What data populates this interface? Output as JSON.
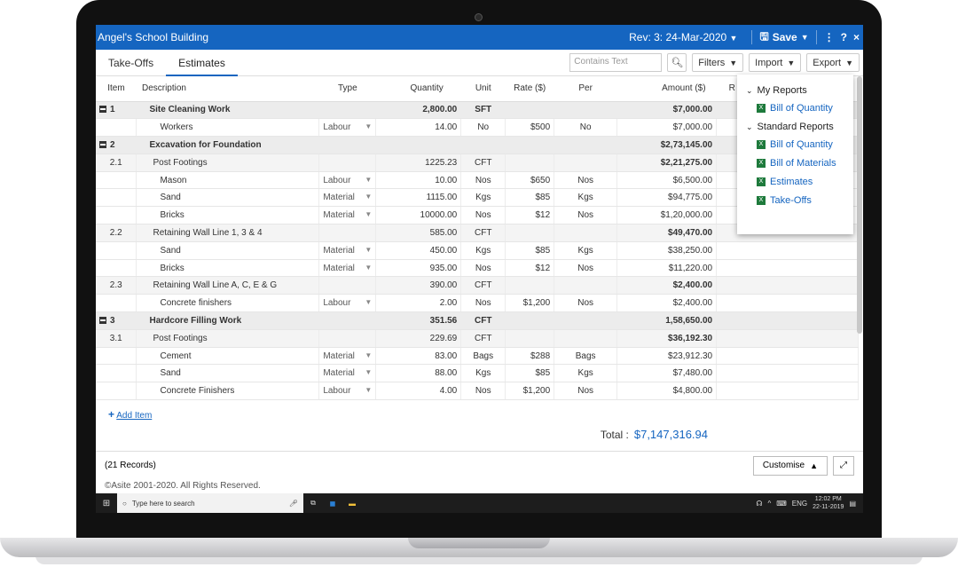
{
  "app": {
    "title": "Angel's School Building",
    "revision": "Rev: 3: 24-Mar-2020",
    "save_label": "Save",
    "more_icon": "⋮",
    "help_icon": "?",
    "close_icon": "×"
  },
  "tabs": [
    {
      "label": "Take-Offs"
    },
    {
      "label": "Estimates"
    }
  ],
  "toolbar": {
    "search_placeholder": "Contains Text",
    "filters_label": "Filters",
    "import_label": "Import",
    "export_label": "Export"
  },
  "columns": {
    "item": "Item",
    "description": "Description",
    "type": "Type",
    "quantity": "Quantity",
    "unit": "Unit",
    "rate": "Rate ($)",
    "per": "Per",
    "amount": "Amount ($)",
    "r": "R"
  },
  "rows": [
    {
      "kind": "grp",
      "item": "1",
      "description": "Site Cleaning Work",
      "type": "",
      "quantity": "2,800.00",
      "unit": "SFT",
      "rate": "",
      "per": "",
      "amount": "$7,000.00"
    },
    {
      "kind": "leaf",
      "item": "",
      "description": "Workers",
      "type": "Labour",
      "quantity": "14.00",
      "unit": "No",
      "rate": "$500",
      "per": "No",
      "amount": "$7,000.00"
    },
    {
      "kind": "grp",
      "item": "2",
      "description": "Excavation for Foundation",
      "type": "",
      "quantity": "",
      "unit": "",
      "rate": "",
      "per": "",
      "amount": "$2,73,145.00"
    },
    {
      "kind": "sub",
      "item": "2.1",
      "description": "Post Footings",
      "type": "",
      "quantity": "1225.23",
      "unit": "CFT",
      "rate": "",
      "per": "",
      "amount": "$2,21,275.00"
    },
    {
      "kind": "leaf",
      "item": "",
      "description": "Mason",
      "type": "Labour",
      "quantity": "10.00",
      "unit": "Nos",
      "rate": "$650",
      "per": "Nos",
      "amount": "$6,500.00"
    },
    {
      "kind": "leaf",
      "item": "",
      "description": "Sand",
      "type": "Material",
      "quantity": "1115.00",
      "unit": "Kgs",
      "rate": "$85",
      "per": "Kgs",
      "amount": "$94,775.00"
    },
    {
      "kind": "leaf",
      "item": "",
      "description": "Bricks",
      "type": "Material",
      "quantity": "10000.00",
      "unit": "Nos",
      "rate": "$12",
      "per": "Nos",
      "amount": "$1,20,000.00"
    },
    {
      "kind": "sub",
      "item": "2.2",
      "description": "Retaining Wall Line 1, 3 & 4",
      "type": "",
      "quantity": "585.00",
      "unit": "CFT",
      "rate": "",
      "per": "",
      "amount": "$49,470.00"
    },
    {
      "kind": "leaf",
      "item": "",
      "description": "Sand",
      "type": "Material",
      "quantity": "450.00",
      "unit": "Kgs",
      "rate": "$85",
      "per": "Kgs",
      "amount": "$38,250.00"
    },
    {
      "kind": "leaf",
      "item": "",
      "description": "Bricks",
      "type": "Material",
      "quantity": "935.00",
      "unit": "Nos",
      "rate": "$12",
      "per": "Nos",
      "amount": "$11,220.00"
    },
    {
      "kind": "sub",
      "item": "2.3",
      "description": "Retaining Wall Line A, C, E & G",
      "type": "",
      "quantity": "390.00",
      "unit": "CFT",
      "rate": "",
      "per": "",
      "amount": "$2,400.00"
    },
    {
      "kind": "leaf",
      "item": "",
      "description": "Concrete finishers",
      "type": "Labour",
      "quantity": "2.00",
      "unit": "Nos",
      "rate": "$1,200",
      "per": "Nos",
      "amount": "$2,400.00"
    },
    {
      "kind": "grp",
      "item": "3",
      "description": "Hardcore Filling Work",
      "type": "",
      "quantity": "351.56",
      "unit": "CFT",
      "rate": "",
      "per": "",
      "amount": "1,58,650.00"
    },
    {
      "kind": "sub",
      "item": "3.1",
      "description": "Post Footings",
      "type": "",
      "quantity": "229.69",
      "unit": "CFT",
      "rate": "",
      "per": "",
      "amount": "$36,192.30"
    },
    {
      "kind": "leaf",
      "item": "",
      "description": "Cement",
      "type": "Material",
      "quantity": "83.00",
      "unit": "Bags",
      "rate": "$288",
      "per": "Bags",
      "amount": "$23,912.30"
    },
    {
      "kind": "leaf",
      "item": "",
      "description": "Sand",
      "type": "Material",
      "quantity": "88.00",
      "unit": "Kgs",
      "rate": "$85",
      "per": "Kgs",
      "amount": "$7,480.00"
    },
    {
      "kind": "leaf",
      "item": "",
      "description": "Concrete Finishers",
      "type": "Labour",
      "quantity": "4.00",
      "unit": "Nos",
      "rate": "$1,200",
      "per": "Nos",
      "amount": "$4,800.00"
    }
  ],
  "add_item_label": "Add Item",
  "total": {
    "label": "Total :",
    "value": "$7,147,316.94"
  },
  "footer": {
    "records": "(21 Records)",
    "customise_label": "Customise",
    "copyright": "©Asite 2001-2020. All Rights Reserved."
  },
  "export_menu": {
    "my_reports_label": "My Reports",
    "my_reports": [
      "Bill of Quantity"
    ],
    "standard_reports_label": "Standard Reports",
    "standard_reports": [
      "Bill of Quantity",
      "Bill of Materials",
      "Estimates",
      "Take-Offs"
    ]
  },
  "taskbar": {
    "search_placeholder": "Type here to search",
    "lang": "ENG",
    "time": "12:02 PM",
    "date": "22-11-2019"
  },
  "colors": {
    "accent": "#1565c0",
    "group_row": "#ececec",
    "excel_green": "#1e7a3c"
  }
}
